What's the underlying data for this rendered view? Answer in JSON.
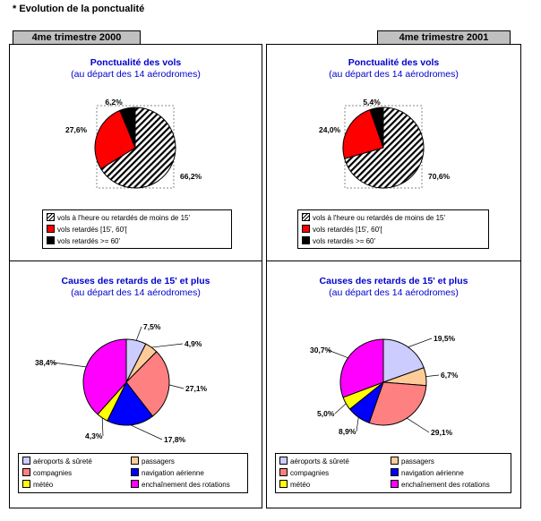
{
  "page_title": "* Evolution de la ponctualité",
  "tabs": {
    "left": "4me trimestre 2000",
    "right": "4me trimestre 2001"
  },
  "colors": {
    "on_time": "#ffffff",
    "late_15_60": "#ff0000",
    "late_60_plus": "#000000",
    "airports": "#ccccff",
    "passengers": "#ffcc99",
    "companies": "#ff8080",
    "navigation": "#0000ff",
    "weather": "#ffff00",
    "rotations": "#ff00ff"
  },
  "punctuality_legend": [
    "vols à l'heure ou retardés de moins de 15'",
    "vols retardés [15', 60'[",
    "vols retardés >= 60'"
  ],
  "causes_legend": [
    "aéroports & sûreté",
    "passagers",
    "compagnies",
    "navigation aérienne",
    "météo",
    "enchaînement des rotations"
  ],
  "chart_data": [
    {
      "type": "pie",
      "title": "Ponctualité des vols",
      "subtitle": "(au départ des 14 aérodromes)",
      "period": "4me trimestre 2000",
      "categories": [
        "vols à l'heure ou retardés de moins de 15'",
        "vols retardés [15', 60'[",
        "vols retardés >= 60'"
      ],
      "values": [
        66.2,
        27.6,
        6.2
      ],
      "labels": [
        "66,2%",
        "27,6%",
        "6,2%"
      ],
      "colors": [
        "hatched",
        "#ff0000",
        "#000000"
      ]
    },
    {
      "type": "pie",
      "title": "Ponctualité des vols",
      "subtitle": "(au départ des 14 aérodromes)",
      "period": "4me trimestre 2001",
      "categories": [
        "vols à l'heure ou retardés de moins de 15'",
        "vols retardés [15', 60'[",
        "vols retardés >= 60'"
      ],
      "values": [
        70.6,
        24.0,
        5.4
      ],
      "labels": [
        "70,6%",
        "24,0%",
        "5,4%"
      ],
      "colors": [
        "hatched",
        "#ff0000",
        "#000000"
      ]
    },
    {
      "type": "pie",
      "title": "Causes des retards de 15' et plus",
      "subtitle": "(au départ des 14 aérodromes)",
      "period": "4me trimestre 2000",
      "categories": [
        "aéroports & sûreté",
        "passagers",
        "compagnies",
        "navigation aérienne",
        "météo",
        "enchaînement des rotations"
      ],
      "values": [
        7.5,
        4.9,
        27.1,
        17.8,
        4.3,
        38.4
      ],
      "labels": [
        "7,5%",
        "4,9%",
        "27,1%",
        "17,8%",
        "4,3%",
        "38,4%"
      ],
      "colors": [
        "#ccccff",
        "#ffcc99",
        "#ff8080",
        "#0000ff",
        "#ffff00",
        "#ff00ff"
      ]
    },
    {
      "type": "pie",
      "title": "Causes des retards de 15' et plus",
      "subtitle": "(au départ des 14 aérodromes)",
      "period": "4me trimestre 2001",
      "categories": [
        "aéroports & sûreté",
        "passagers",
        "compagnies",
        "navigation aérienne",
        "météo",
        "enchaînement des rotations"
      ],
      "values": [
        19.5,
        6.7,
        29.1,
        8.9,
        5.0,
        30.7
      ],
      "labels": [
        "19,5%",
        "6,7%",
        "29,1%",
        "8,9%",
        "5,0%",
        "30,7%"
      ],
      "colors": [
        "#ccccff",
        "#ffcc99",
        "#ff8080",
        "#0000ff",
        "#ffff00",
        "#ff00ff"
      ]
    }
  ]
}
